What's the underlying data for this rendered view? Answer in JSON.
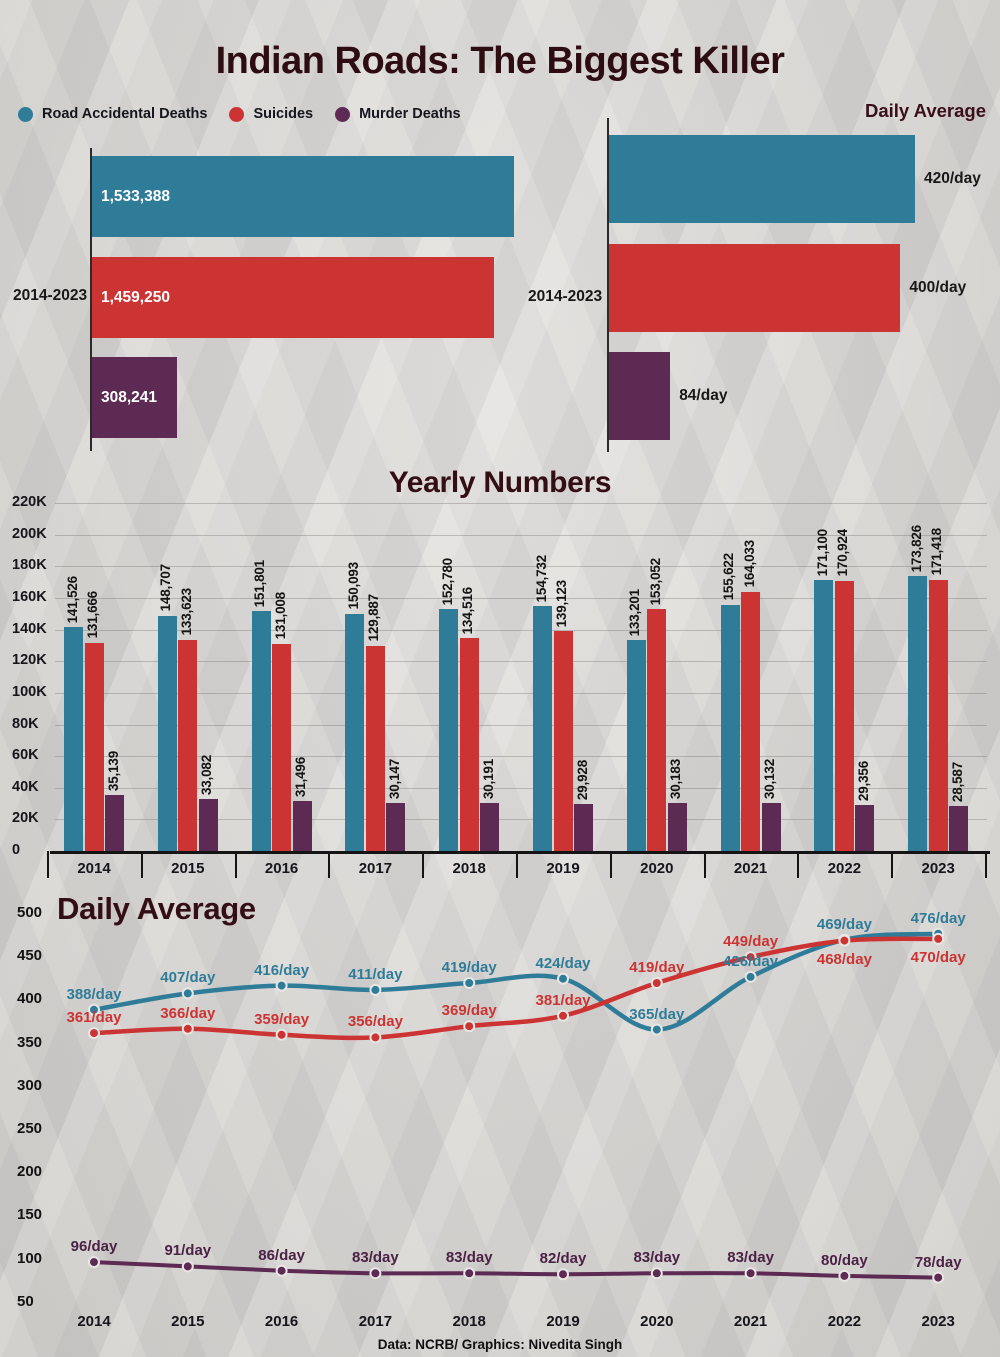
{
  "title": "Indian Roads: The Biggest Killer",
  "footer": "Data: NCRB/ Graphics: Nivedita Singh",
  "colors": {
    "accidents": "#2f7c99",
    "suicides": "#cc3433",
    "murders": "#5c2a52",
    "heading": "#330e15",
    "dark_label": "#181818",
    "light_label": "#ffffff"
  },
  "legend": {
    "items": [
      {
        "label": "Road Accidental Deaths",
        "color": "#2f7c99"
      },
      {
        "label": "Suicides",
        "color": "#cc3433"
      },
      {
        "label": "Murder Deaths",
        "color": "#5c2a52"
      }
    ]
  },
  "chart_data": [
    {
      "name": "totals_2014_2023",
      "type": "bar",
      "orientation": "horizontal",
      "period_label": "2014-2023",
      "categories": [
        "Road Accidental Deaths",
        "Suicides",
        "Murder Deaths"
      ],
      "values": [
        1533388,
        1459250,
        308241
      ],
      "value_labels": [
        "1,533,388",
        "1,459,250",
        "308,241"
      ]
    },
    {
      "name": "daily_average_totals",
      "type": "bar",
      "orientation": "horizontal",
      "title": "Daily Average",
      "period_label": "2014-2023",
      "categories": [
        "Road Accidental Deaths",
        "Suicides",
        "Murder Deaths"
      ],
      "values": [
        420,
        400,
        84
      ],
      "value_labels": [
        "420/day",
        "400/day",
        "84/day"
      ]
    },
    {
      "name": "yearly_numbers",
      "type": "bar",
      "title": "Yearly Numbers",
      "categories": [
        "2014",
        "2015",
        "2016",
        "2017",
        "2018",
        "2019",
        "2020",
        "2021",
        "2022",
        "2023"
      ],
      "series": [
        {
          "name": "Road Accidental Deaths",
          "values": [
            141526,
            148707,
            151801,
            150093,
            152780,
            154732,
            133201,
            155622,
            171100,
            173826
          ],
          "labels": [
            "141,526",
            "148,707",
            "151,801",
            "150,093",
            "152,780",
            "154,732",
            "133,201",
            "155,622",
            "171,100",
            "173,826"
          ]
        },
        {
          "name": "Suicides",
          "values": [
            131666,
            133623,
            131008,
            129887,
            134516,
            139123,
            153052,
            164033,
            170924,
            171418
          ],
          "labels": [
            "131,666",
            "133,623",
            "131,008",
            "129,887",
            "134,516",
            "139,123",
            "153,052",
            "164,033",
            "170,924",
            "171,418"
          ]
        },
        {
          "name": "Murder Deaths",
          "values": [
            35139,
            33082,
            31496,
            30147,
            30191,
            29928,
            30183,
            30132,
            29356,
            28587
          ],
          "labels": [
            "35,139",
            "33,082",
            "31,496",
            "30,147",
            "30,191",
            "29,928",
            "30,183",
            "30,132",
            "29,356",
            "28,587"
          ]
        }
      ],
      "ylim": [
        0,
        220000
      ],
      "grid": true,
      "ytick_values": [
        220000,
        200000,
        180000,
        160000,
        140000,
        120000,
        100000,
        80000,
        60000,
        40000,
        20000,
        0
      ],
      "yticks": [
        "220K",
        "200K",
        "180K",
        "160K",
        "140K",
        "120K",
        "100K",
        "80K",
        "60K",
        "40K",
        "20K",
        "0"
      ]
    },
    {
      "name": "daily_average_by_year",
      "type": "line",
      "title": "Daily Average",
      "x": [
        "2014",
        "2015",
        "2016",
        "2017",
        "2018",
        "2019",
        "2020",
        "2021",
        "2022",
        "2023"
      ],
      "ylim": [
        50,
        500
      ],
      "ytick_values": [
        500,
        450,
        400,
        350,
        300,
        250,
        200,
        150,
        100,
        50
      ],
      "yticks": [
        "500",
        "450",
        "400",
        "350",
        "300",
        "250",
        "200",
        "150",
        "100",
        "50"
      ],
      "series": [
        {
          "name": "Road Accidental Deaths",
          "values": [
            388,
            407,
            416,
            411,
            419,
            424,
            365,
            426,
            469,
            476
          ],
          "labels": [
            "388/day",
            "407/day",
            "416/day",
            "411/day",
            "419/day",
            "424/day",
            "365/day",
            "426/day",
            "469/day",
            "476/day"
          ],
          "label_positions": [
            "above",
            "above",
            "above",
            "above",
            "above",
            "above",
            "above",
            "above",
            "above",
            "above"
          ]
        },
        {
          "name": "Suicides",
          "values": [
            361,
            366,
            359,
            356,
            369,
            381,
            419,
            449,
            468,
            470
          ],
          "labels": [
            "361/day",
            "366/day",
            "359/day",
            "356/day",
            "369/day",
            "381/day",
            "419/day",
            "449/day",
            "468/day",
            "470/day"
          ],
          "label_positions": [
            "above",
            "above",
            "above",
            "above",
            "above",
            "above",
            "above",
            "above",
            "below",
            "below"
          ]
        },
        {
          "name": "Murder Deaths",
          "values": [
            96,
            91,
            86,
            83,
            83,
            82,
            83,
            83,
            80,
            78
          ],
          "labels": [
            "96/day",
            "91/day",
            "86/day",
            "83/day",
            "83/day",
            "82/day",
            "83/day",
            "83/day",
            "80/day",
            "78/day"
          ],
          "label_positions": [
            "above",
            "above",
            "above",
            "above",
            "above",
            "above",
            "above",
            "above",
            "above",
            "above"
          ]
        }
      ]
    }
  ]
}
